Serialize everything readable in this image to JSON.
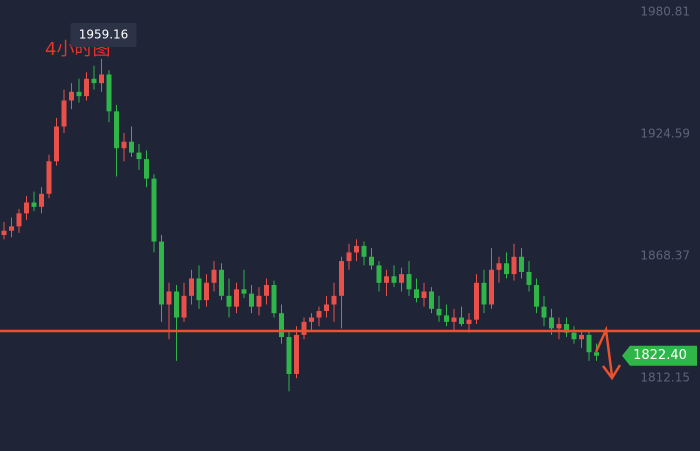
{
  "chart_data": {
    "type": "candlestick",
    "annotation": "4小时图",
    "up_color": "#e8504a",
    "down_color": "#2fb548",
    "ylim": [
      1778.5,
      1986.3
    ],
    "yticks": [
      1980.81,
      1924.59,
      1868.37,
      1812.15
    ],
    "hline": {
      "value": 1833.8,
      "color": "#e8522e"
    },
    "high_label_index": 13,
    "last_price": {
      "value": 1822.4,
      "label": "1822.40"
    },
    "ohlc": [
      [
        1878,
        1884,
        1876,
        1880
      ],
      [
        1880,
        1886,
        1877,
        1882
      ],
      [
        1882,
        1890,
        1879,
        1888
      ],
      [
        1888,
        1896,
        1885,
        1893
      ],
      [
        1893,
        1898,
        1889,
        1891
      ],
      [
        1891,
        1900,
        1888,
        1897
      ],
      [
        1897,
        1915,
        1895,
        1912
      ],
      [
        1912,
        1932,
        1910,
        1928
      ],
      [
        1928,
        1945,
        1925,
        1940
      ],
      [
        1940,
        1948,
        1936,
        1944
      ],
      [
        1944,
        1950,
        1939,
        1942
      ],
      [
        1942,
        1953,
        1940,
        1950
      ],
      [
        1950,
        1956,
        1945,
        1948
      ],
      [
        1948,
        1959.16,
        1944,
        1952
      ],
      [
        1952,
        1954,
        1930,
        1935
      ],
      [
        1935,
        1938,
        1905,
        1918
      ],
      [
        1918,
        1925,
        1912,
        1921
      ],
      [
        1921,
        1928,
        1914,
        1916
      ],
      [
        1916,
        1920,
        1908,
        1913
      ],
      [
        1913,
        1917,
        1900,
        1904
      ],
      [
        1904,
        1906,
        1870,
        1875
      ],
      [
        1875,
        1878,
        1838,
        1846
      ],
      [
        1846,
        1856,
        1830,
        1852
      ],
      [
        1852,
        1855,
        1820,
        1840
      ],
      [
        1840,
        1856,
        1838,
        1850
      ],
      [
        1850,
        1862,
        1846,
        1858
      ],
      [
        1858,
        1864,
        1844,
        1848
      ],
      [
        1848,
        1860,
        1845,
        1856
      ],
      [
        1856,
        1866,
        1852,
        1862
      ],
      [
        1862,
        1865,
        1848,
        1850
      ],
      [
        1850,
        1858,
        1840,
        1845
      ],
      [
        1845,
        1856,
        1842,
        1853
      ],
      [
        1853,
        1862,
        1849,
        1851
      ],
      [
        1851,
        1855,
        1842,
        1845
      ],
      [
        1845,
        1854,
        1841,
        1850
      ],
      [
        1850,
        1858,
        1846,
        1855
      ],
      [
        1855,
        1857,
        1840,
        1842
      ],
      [
        1842,
        1846,
        1828,
        1831
      ],
      [
        1831,
        1834,
        1806,
        1814
      ],
      [
        1814,
        1836,
        1812,
        1832
      ],
      [
        1832,
        1840,
        1830,
        1838
      ],
      [
        1838,
        1842,
        1834,
        1840
      ],
      [
        1840,
        1845,
        1836,
        1843
      ],
      [
        1843,
        1850,
        1840,
        1846
      ],
      [
        1846,
        1856,
        1838,
        1850
      ],
      [
        1850,
        1868,
        1835,
        1866
      ],
      [
        1866,
        1874,
        1862,
        1870
      ],
      [
        1870,
        1876,
        1866,
        1873
      ],
      [
        1873,
        1875,
        1864,
        1868
      ],
      [
        1868,
        1872,
        1862,
        1864
      ],
      [
        1864,
        1866,
        1852,
        1856
      ],
      [
        1856,
        1862,
        1850,
        1859
      ],
      [
        1859,
        1864,
        1854,
        1856
      ],
      [
        1856,
        1863,
        1852,
        1860
      ],
      [
        1860,
        1866,
        1850,
        1853
      ],
      [
        1853,
        1858,
        1847,
        1849
      ],
      [
        1849,
        1856,
        1845,
        1852
      ],
      [
        1852,
        1854,
        1842,
        1844
      ],
      [
        1844,
        1850,
        1838,
        1841
      ],
      [
        1841,
        1846,
        1836,
        1838
      ],
      [
        1838,
        1844,
        1834,
        1840
      ],
      [
        1840,
        1845,
        1836,
        1837
      ],
      [
        1837,
        1842,
        1833,
        1839
      ],
      [
        1839,
        1860,
        1837,
        1856
      ],
      [
        1856,
        1862,
        1842,
        1846
      ],
      [
        1846,
        1872,
        1844,
        1862
      ],
      [
        1862,
        1868,
        1856,
        1865
      ],
      [
        1865,
        1870,
        1858,
        1860
      ],
      [
        1860,
        1874,
        1857,
        1868
      ],
      [
        1868,
        1872,
        1858,
        1861
      ],
      [
        1861,
        1866,
        1852,
        1855
      ],
      [
        1855,
        1858,
        1842,
        1845
      ],
      [
        1845,
        1850,
        1836,
        1840
      ],
      [
        1840,
        1844,
        1832,
        1835
      ],
      [
        1835,
        1840,
        1830,
        1837
      ],
      [
        1837,
        1840,
        1831,
        1833
      ],
      [
        1833,
        1836,
        1828,
        1830
      ],
      [
        1830,
        1834,
        1826,
        1832
      ],
      [
        1832,
        1834,
        1820,
        1824
      ],
      [
        1824,
        1828,
        1820,
        1822.4
      ]
    ]
  }
}
